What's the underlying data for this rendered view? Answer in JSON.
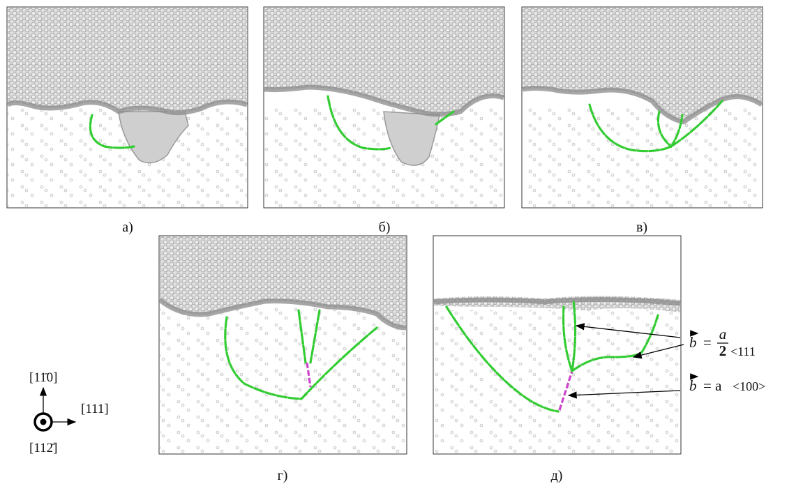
{
  "panels": [
    {
      "label": "а)"
    },
    {
      "label": "б)"
    },
    {
      "label": "в)"
    },
    {
      "label": "г)"
    },
    {
      "label": "д)"
    }
  ],
  "axes": {
    "vertical": "[11̄0]",
    "horizontal": "[111]",
    "normal": "[112̄]"
  },
  "annotations": [
    {
      "symbol": "b",
      "equals": "=",
      "numerator": "a",
      "denominator": "2",
      "direction": "<111"
    },
    {
      "symbol": "b",
      "equals": "= a",
      "direction": "<100>"
    }
  ]
}
